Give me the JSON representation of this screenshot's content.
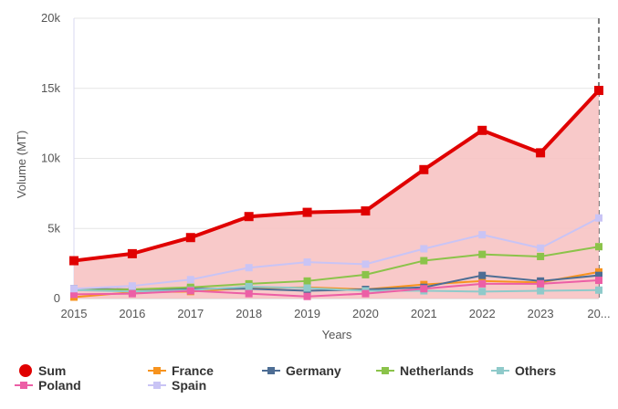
{
  "chart_data": {
    "type": "line",
    "title": "",
    "xlabel": "Years",
    "ylabel": "Volume (MT)",
    "x": [
      "2015",
      "2016",
      "2017",
      "2018",
      "2019",
      "2020",
      "2021",
      "2022",
      "2023",
      "20..."
    ],
    "ylim": [
      0,
      20000
    ],
    "yticks": [
      {
        "value": 0,
        "label": "0"
      },
      {
        "value": 5000,
        "label": "5k"
      },
      {
        "value": 10000,
        "label": "10k"
      },
      {
        "value": 15000,
        "label": "15k"
      },
      {
        "value": 20000,
        "label": "20k"
      }
    ],
    "grid": "horizontal",
    "legend_placement": "bottom",
    "series": [
      {
        "name": "Sum",
        "color": "#e00000",
        "area": true,
        "area_color": "#f7c3c3",
        "marker": "circle-legend",
        "values": [
          2700,
          3200,
          4350,
          5850,
          6150,
          6250,
          9200,
          12000,
          10400,
          14850
        ]
      },
      {
        "name": "France",
        "color": "#f7931e",
        "values": [
          100,
          450,
          500,
          750,
          800,
          650,
          1000,
          1250,
          1150,
          1900
        ]
      },
      {
        "name": "Germany",
        "color": "#4d6d94",
        "values": [
          700,
          650,
          700,
          700,
          550,
          650,
          800,
          1650,
          1250,
          1650
        ]
      },
      {
        "name": "Netherlands",
        "color": "#8bc34a",
        "values": [
          600,
          650,
          800,
          1050,
          1250,
          1700,
          2700,
          3150,
          3000,
          3700
        ]
      },
      {
        "name": "Others",
        "color": "#8fcaca",
        "values": [
          600,
          500,
          600,
          850,
          750,
          550,
          550,
          500,
          550,
          600
        ]
      },
      {
        "name": "Poland",
        "color": "#ec5fa6",
        "values": [
          300,
          350,
          550,
          350,
          150,
          350,
          700,
          1050,
          1050,
          1300
        ]
      },
      {
        "name": "Spain",
        "color": "#c9c4f5",
        "values": [
          700,
          900,
          1350,
          2200,
          2600,
          2450,
          3550,
          4550,
          3600,
          5750
        ]
      }
    ]
  }
}
